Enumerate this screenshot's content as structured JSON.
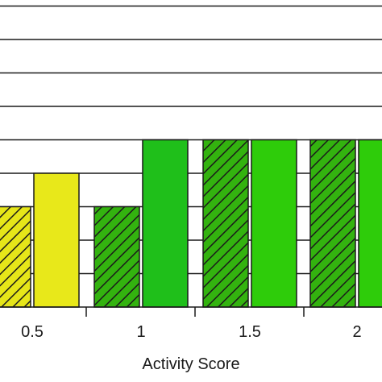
{
  "chart_data": {
    "type": "bar",
    "xlabel": "Activity Score",
    "ylabel": "",
    "ylim": [
      0,
      9
    ],
    "grid": true,
    "x_ticks": [
      "0.5",
      "1",
      "1.5",
      "2"
    ],
    "series": [
      {
        "pattern": "hatched",
        "values": [
          3,
          3,
          5,
          5
        ]
      },
      {
        "pattern": "solid",
        "values": [
          4,
          5,
          5,
          5
        ]
      }
    ],
    "colors": {
      "hatched": [
        "#e6e619",
        "#33b30f",
        "#33b30f",
        "#33b30f"
      ],
      "solid": [
        "#e8e81a",
        "#1fbf1a",
        "#2ecc0a",
        "#2ecc0a"
      ],
      "axis": "#1a1a1a",
      "grid": "#1a1a1a"
    }
  }
}
